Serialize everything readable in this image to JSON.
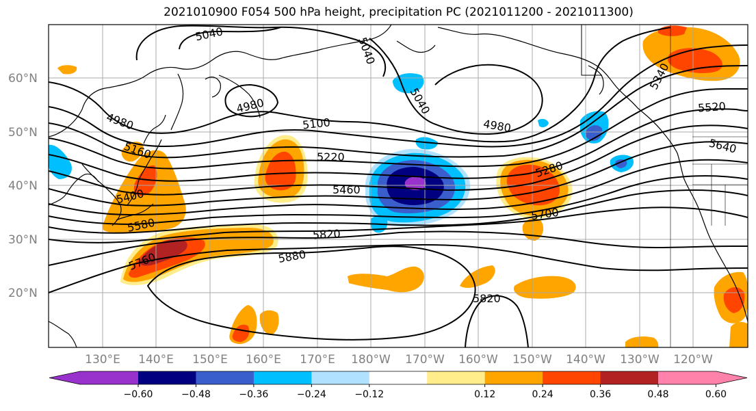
{
  "title": "2021010900 F054 500 hPa height, precipitation PC (2021011200 - 2021011300)",
  "lat_ticks": [
    "60°N",
    "50°N",
    "40°N",
    "30°N",
    "20°N"
  ],
  "lon_ticks": [
    "130°E",
    "140°E",
    "150°E",
    "160°E",
    "170°E",
    "180°W",
    "170°W",
    "160°W",
    "150°W",
    "140°W",
    "130°W",
    "120°W"
  ],
  "contour_labels": [
    "5040",
    "5040",
    "5040",
    "4980",
    "4980",
    "4980",
    "5100",
    "5160",
    "5220",
    "5280",
    "5340",
    "5400",
    "5460",
    "5520",
    "5580",
    "5640",
    "5700",
    "5760",
    "5820",
    "5820",
    "5880"
  ],
  "colorbar": {
    "ticks": [
      "−0.60",
      "−0.48",
      "−0.36",
      "−0.24",
      "−0.12",
      "0.12",
      "0.24",
      "0.36",
      "0.48",
      "0.60"
    ],
    "colors": [
      "#9932cc",
      "#000080",
      "#3a5fcd",
      "#00bfff",
      "#b0e2ff",
      "#ffffff",
      "#ffec8b",
      "#ffa500",
      "#ff4500",
      "#b22222",
      "#ff82ab"
    ]
  },
  "colors": {
    "neg_strong": "#000080",
    "neg_mid": "#3a5fcd",
    "neg_light": "#00bfff",
    "neg_pale": "#b0e2ff",
    "neg_extreme": "#9932cc",
    "pos_pale": "#ffec8b",
    "pos_light": "#ffa500",
    "pos_mid": "#ff4500",
    "pos_strong": "#b22222"
  }
}
